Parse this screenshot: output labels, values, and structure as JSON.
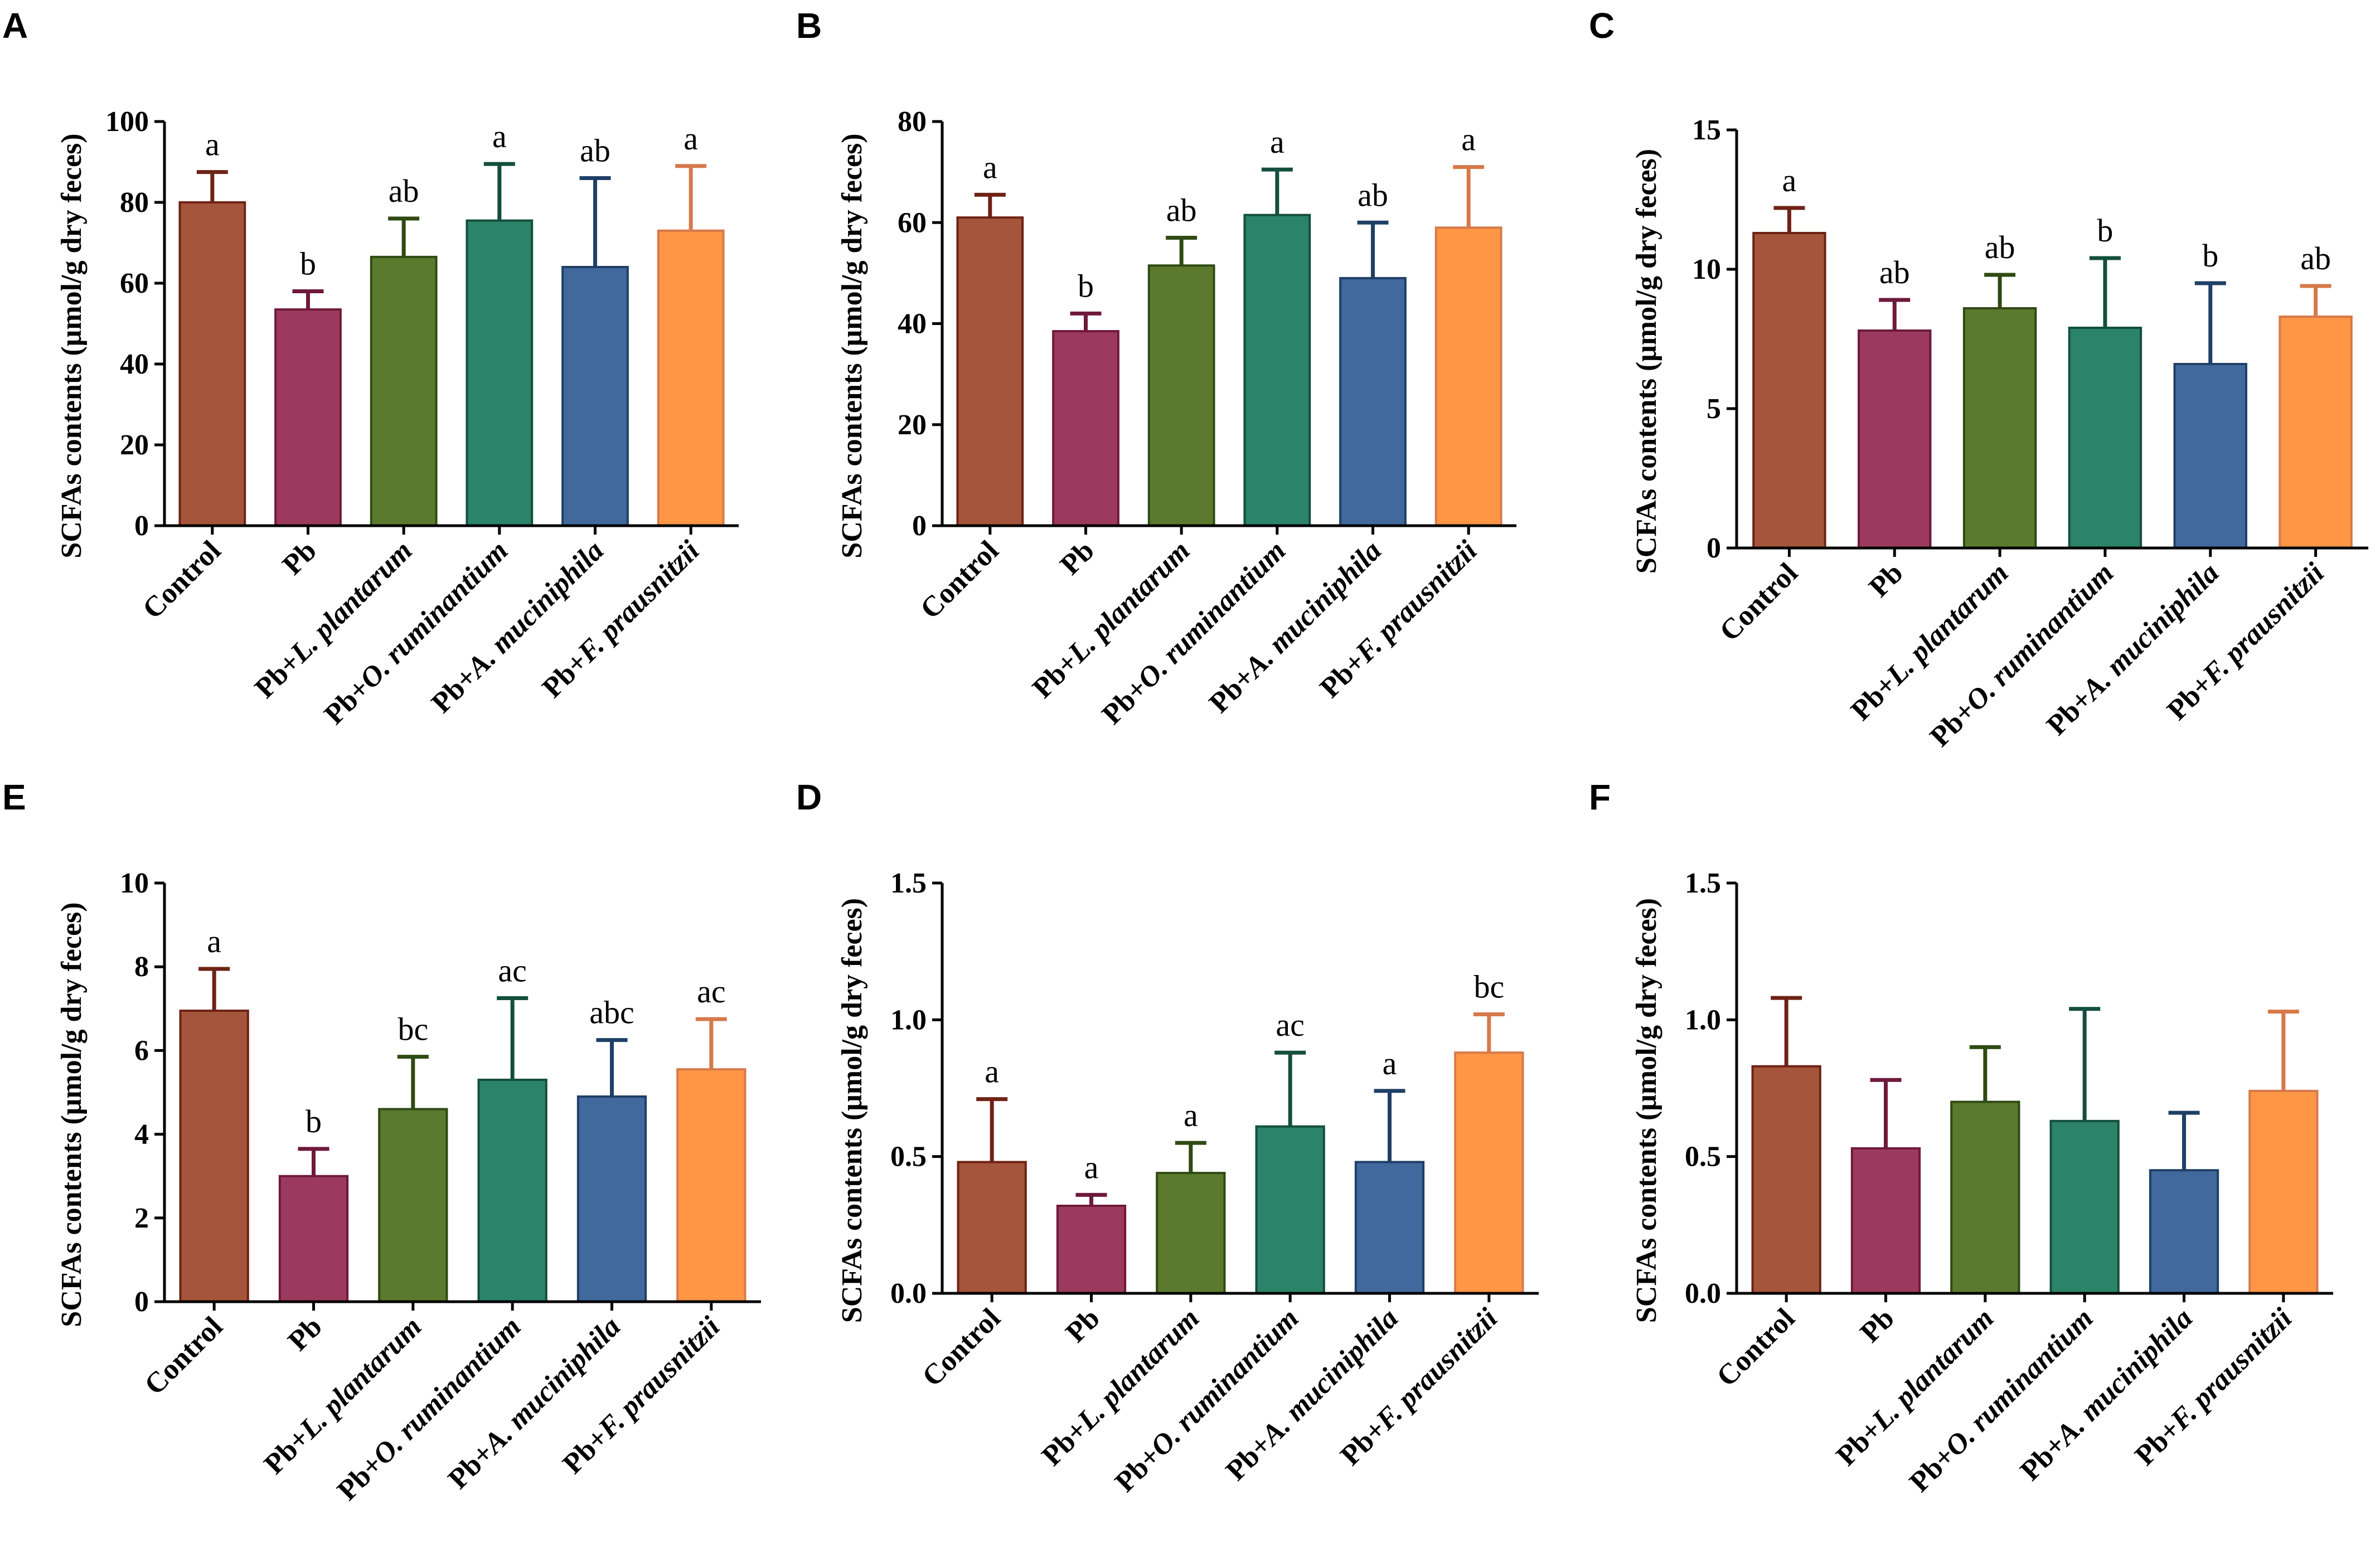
{
  "figure_title": "SCFAs contents panels",
  "colors": {
    "fill": [
      "#a5553b",
      "#9b3a5e",
      "#5c7a2e",
      "#2b8369",
      "#41699d",
      "#ff9646"
    ],
    "edge": [
      "#6e2215",
      "#6e1a3a",
      "#2f4a12",
      "#134f3c",
      "#1f3f66",
      "#d6794a"
    ]
  },
  "chart_data": [
    {
      "type": "bar",
      "panel": "A",
      "ylabel": "SCFAs contents (μmol/g dry feces)",
      "categories": [
        {
          "prefix": "",
          "italic": "",
          "plain": "Control"
        },
        {
          "prefix": "",
          "italic": "",
          "plain": "Pb"
        },
        {
          "prefix": "Pb+",
          "italic": "L. plantarum",
          "plain": ""
        },
        {
          "prefix": "Pb+",
          "italic": "O. ruminantium",
          "plain": ""
        },
        {
          "prefix": "Pb+",
          "italic": "A. muciniphila",
          "plain": ""
        },
        {
          "prefix": "Pb+",
          "italic": "F. prausnitzii",
          "plain": ""
        }
      ],
      "values": [
        80,
        53.5,
        66.5,
        75.5,
        64,
        73
      ],
      "errors": [
        7.5,
        4.5,
        9.5,
        14,
        22,
        16
      ],
      "significance": [
        "a",
        "b",
        "ab",
        "a",
        "ab",
        "a"
      ],
      "ylim": [
        0,
        100
      ],
      "yticks": [
        "0",
        "20",
        "40",
        "60",
        "80",
        "100"
      ]
    },
    {
      "type": "bar",
      "panel": "B",
      "ylabel": "SCFAs contents (μmol/g dry feces)",
      "categories": [
        {
          "prefix": "",
          "italic": "",
          "plain": "Control"
        },
        {
          "prefix": "",
          "italic": "",
          "plain": "Pb"
        },
        {
          "prefix": "Pb+",
          "italic": "L. plantarum",
          "plain": ""
        },
        {
          "prefix": "Pb+",
          "italic": "O. ruminantium",
          "plain": ""
        },
        {
          "prefix": "Pb+",
          "italic": "A. muciniphila",
          "plain": ""
        },
        {
          "prefix": "Pb+",
          "italic": "F. prausnitzii",
          "plain": ""
        }
      ],
      "values": [
        61,
        38.5,
        51.5,
        61.5,
        49,
        59
      ],
      "errors": [
        4.5,
        3.5,
        5.5,
        9,
        11,
        12
      ],
      "significance": [
        "a",
        "b",
        "ab",
        "a",
        "ab",
        "a"
      ],
      "ylim": [
        0,
        80
      ],
      "yticks": [
        "0",
        "20",
        "40",
        "60",
        "80"
      ]
    },
    {
      "type": "bar",
      "panel": "C",
      "ylabel": "SCFAs contents (μmol/g dry feces)",
      "categories": [
        {
          "prefix": "",
          "italic": "",
          "plain": "Control"
        },
        {
          "prefix": "",
          "italic": "",
          "plain": "Pb"
        },
        {
          "prefix": "Pb+",
          "italic": "L. plantarum",
          "plain": ""
        },
        {
          "prefix": "Pb+",
          "italic": "O. ruminantium",
          "plain": ""
        },
        {
          "prefix": "Pb+",
          "italic": "A. muciniphila",
          "plain": ""
        },
        {
          "prefix": "Pb+",
          "italic": "F. prausnitzii",
          "plain": ""
        }
      ],
      "values": [
        11.3,
        7.8,
        8.6,
        7.9,
        6.6,
        8.3
      ],
      "errors": [
        0.9,
        1.1,
        1.2,
        2.5,
        2.9,
        1.1
      ],
      "significance": [
        "a",
        "ab",
        "ab",
        "b",
        "b",
        "ab"
      ],
      "ylim": [
        0,
        15
      ],
      "yticks": [
        "0",
        "5",
        "10",
        "15"
      ]
    },
    {
      "type": "bar",
      "panel": "E",
      "ylabel": "SCFAs contents (μmol/g dry feces)",
      "categories": [
        {
          "prefix": "",
          "italic": "",
          "plain": "Control"
        },
        {
          "prefix": "",
          "italic": "",
          "plain": "Pb"
        },
        {
          "prefix": "Pb+",
          "italic": "L. plantarum",
          "plain": ""
        },
        {
          "prefix": "Pb+",
          "italic": "O. ruminantium",
          "plain": ""
        },
        {
          "prefix": "Pb+",
          "italic": "A. muciniphila",
          "plain": ""
        },
        {
          "prefix": "Pb+",
          "italic": "F. prausnitzii",
          "plain": ""
        }
      ],
      "values": [
        6.95,
        3.0,
        4.6,
        5.3,
        4.9,
        5.55
      ],
      "errors": [
        1.0,
        0.65,
        1.25,
        1.95,
        1.35,
        1.2
      ],
      "significance": [
        "a",
        "b",
        "bc",
        "ac",
        "abc",
        "ac"
      ],
      "ylim": [
        0,
        10
      ],
      "yticks": [
        "0",
        "2",
        "4",
        "6",
        "8",
        "10"
      ]
    },
    {
      "type": "bar",
      "panel": "D",
      "ylabel": "SCFAs contents (μmol/g dry feces)",
      "categories": [
        {
          "prefix": "",
          "italic": "",
          "plain": "Control"
        },
        {
          "prefix": "",
          "italic": "",
          "plain": "Pb"
        },
        {
          "prefix": "Pb+",
          "italic": "L. plantarum",
          "plain": ""
        },
        {
          "prefix": "Pb+",
          "italic": "O. ruminantium",
          "plain": ""
        },
        {
          "prefix": "Pb+",
          "italic": "A. muciniphila",
          "plain": ""
        },
        {
          "prefix": "Pb+",
          "italic": "F. prausnitzii",
          "plain": ""
        }
      ],
      "values": [
        0.48,
        0.32,
        0.44,
        0.61,
        0.48,
        0.88
      ],
      "errors": [
        0.23,
        0.04,
        0.11,
        0.27,
        0.26,
        0.14
      ],
      "significance": [
        "a",
        "a",
        "a",
        "ac",
        "a",
        "bc"
      ],
      "ylim": [
        0,
        1.5
      ],
      "yticks": [
        "0.0",
        "0.5",
        "1.0",
        "1.5"
      ]
    },
    {
      "type": "bar",
      "panel": "F",
      "ylabel": "SCFAs contents (μmol/g dry feces)",
      "categories": [
        {
          "prefix": "",
          "italic": "",
          "plain": "Control"
        },
        {
          "prefix": "",
          "italic": "",
          "plain": "Pb"
        },
        {
          "prefix": "Pb+",
          "italic": "L. plantarum",
          "plain": ""
        },
        {
          "prefix": "Pb+",
          "italic": "O. ruminantium",
          "plain": ""
        },
        {
          "prefix": "Pb+",
          "italic": "A. muciniphila",
          "plain": ""
        },
        {
          "prefix": "Pb+",
          "italic": "F. prausnitzii",
          "plain": ""
        }
      ],
      "values": [
        0.83,
        0.53,
        0.7,
        0.63,
        0.45,
        0.74
      ],
      "errors": [
        0.25,
        0.25,
        0.2,
        0.41,
        0.21,
        0.29
      ],
      "significance": [
        "",
        "",
        "",
        "",
        "",
        ""
      ],
      "ylim": [
        0,
        1.5
      ],
      "yticks": [
        "0.0",
        "0.5",
        "1.0",
        "1.5"
      ]
    }
  ]
}
